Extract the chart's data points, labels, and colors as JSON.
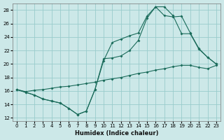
{
  "xlabel": "Humidex (Indice chaleur)",
  "background_color": "#cce8e8",
  "grid_color": "#99cccc",
  "line_color": "#1a6b5a",
  "xlim": [
    -0.5,
    23.5
  ],
  "ylim": [
    11.5,
    29
  ],
  "xticks": [
    0,
    1,
    2,
    3,
    4,
    5,
    6,
    7,
    8,
    9,
    10,
    11,
    12,
    13,
    14,
    15,
    16,
    17,
    18,
    19,
    20,
    21,
    22,
    23
  ],
  "yticks": [
    12,
    14,
    16,
    18,
    20,
    22,
    24,
    26,
    28
  ],
  "line1_x": [
    0,
    1,
    2,
    3,
    4,
    5,
    6,
    7,
    8,
    9,
    10,
    11,
    12,
    13,
    14,
    15,
    16,
    17,
    18,
    19,
    20,
    21,
    22,
    23
  ],
  "line1_y": [
    16.2,
    15.8,
    15.4,
    14.8,
    14.5,
    14.2,
    13.4,
    12.5,
    13.0,
    16.2,
    20.5,
    23.2,
    23.7,
    24.2,
    24.6,
    27.1,
    28.5,
    28.5,
    27.2,
    24.5,
    24.5,
    22.2,
    21.0,
    20.0
  ],
  "line2_x": [
    0,
    1,
    2,
    3,
    4,
    5,
    6,
    7,
    8,
    9,
    10,
    11,
    12,
    13,
    14,
    15,
    16,
    17,
    18,
    19,
    20,
    21,
    22,
    23
  ],
  "line2_y": [
    16.2,
    15.9,
    16.1,
    16.2,
    16.4,
    16.6,
    16.7,
    16.9,
    17.1,
    17.3,
    17.6,
    17.8,
    18.0,
    18.3,
    18.6,
    18.8,
    19.1,
    19.3,
    19.6,
    19.8,
    19.8,
    19.5,
    19.3,
    19.8
  ],
  "line3_x": [
    0,
    1,
    2,
    3,
    4,
    5,
    6,
    7,
    8,
    9,
    10,
    11,
    12,
    13,
    14,
    15,
    16,
    17,
    18,
    19,
    20,
    21,
    22,
    23
  ],
  "line3_y": [
    16.2,
    15.8,
    15.4,
    14.8,
    14.5,
    14.2,
    13.4,
    12.5,
    13.0,
    16.2,
    20.8,
    20.9,
    21.2,
    22.0,
    23.5,
    26.8,
    28.5,
    27.2,
    27.0,
    27.1,
    24.6,
    22.3,
    21.0,
    20.0
  ]
}
